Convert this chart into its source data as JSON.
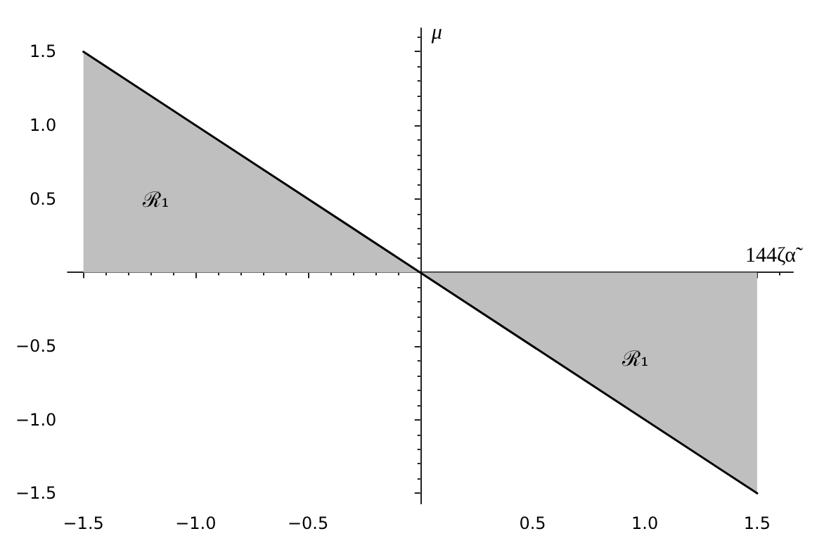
{
  "chart_data": {
    "type": "area",
    "xlabel": "144ζα̃",
    "ylabel": "μ",
    "x": [
      -1.5,
      0,
      1.5
    ],
    "series": [
      {
        "type": "area",
        "color": "#bfbfbf",
        "values": [
          1.5,
          0,
          -1.5
        ]
      }
    ],
    "xlim": [
      -1.57,
      1.66
    ],
    "ylim": [
      -1.57,
      1.66
    ],
    "xticks": [
      {
        "value": -1.5,
        "label": "−1.5"
      },
      {
        "value": -1,
        "label": "−1.0"
      },
      {
        "value": -0.5,
        "label": "−0.5"
      },
      {
        "value": 0.5,
        "label": "0.5"
      },
      {
        "value": 1,
        "label": "1.0"
      },
      {
        "value": 1.5,
        "label": "1.5"
      }
    ],
    "yticks": [
      {
        "value": -1.5,
        "label": "−1.5"
      },
      {
        "value": -1,
        "label": "−1.0"
      },
      {
        "value": -0.5,
        "label": "−0.5"
      },
      {
        "value": 0.5,
        "label": "0.5"
      },
      {
        "value": 1,
        "label": "1.0"
      },
      {
        "value": 1.5,
        "label": "1.5"
      }
    ],
    "annotations": [
      "ℛ₁",
      "ℛ₁"
    ],
    "grid": false,
    "marker": "none",
    "line_style": "solid"
  }
}
